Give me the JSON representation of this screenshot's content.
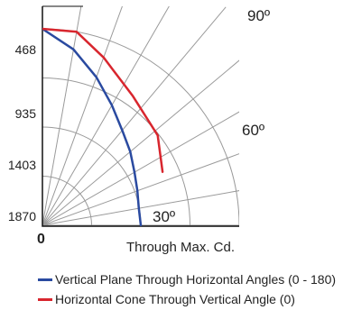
{
  "chart_data": {
    "type": "polar-candela",
    "xlabel": "Through Max. Cd.",
    "radial_ticks": [
      "468",
      "935",
      "1403",
      "1870"
    ],
    "radial_values": [
      467.5,
      935,
      1402.5,
      1870
    ],
    "r_max": 1870,
    "angle_labels": [
      {
        "text": "90º",
        "angle": 90
      },
      {
        "text": "60º",
        "angle": 60
      },
      {
        "text": "30º",
        "angle": 30
      },
      {
        "text": "0",
        "angle": 0
      }
    ],
    "grid_angles": [
      0,
      10,
      20,
      30,
      40,
      50,
      60,
      70,
      80,
      90
    ],
    "series": [
      {
        "name": "Vertical Plane Through Horizontal Angles (0 - 180)",
        "color": "#2a4aa0",
        "points": [
          [
            0,
            1870
          ],
          [
            10,
            1700
          ],
          [
            20,
            1500
          ],
          [
            30,
            1320
          ],
          [
            40,
            1180
          ],
          [
            50,
            1090
          ],
          [
            60,
            1010
          ],
          [
            70,
            960
          ],
          [
            80,
            930
          ],
          [
            90,
            935
          ]
        ]
      },
      {
        "name": "Horizontal Cone Through Vertical Angle (0)",
        "color": "#d8262e",
        "points": [
          [
            0,
            1870
          ],
          [
            10,
            1870
          ],
          [
            20,
            1700
          ],
          [
            35,
            1500
          ],
          [
            52,
            1390
          ],
          [
            66,
            1250
          ]
        ]
      }
    ]
  }
}
